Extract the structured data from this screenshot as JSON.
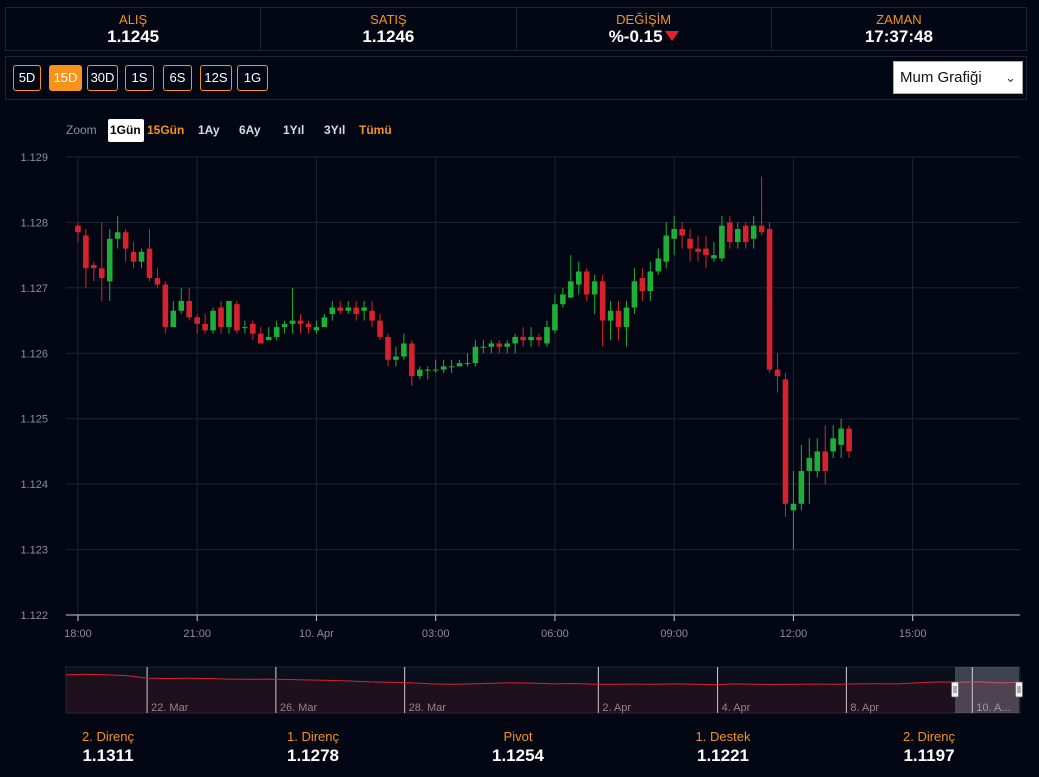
{
  "quotes": [
    {
      "label": "ALIŞ",
      "value": "1.1245"
    },
    {
      "label": "SATIŞ",
      "value": "1.1246"
    },
    {
      "label": "DEĞİŞİM",
      "value": "%-0.15"
    },
    {
      "label": "ZAMAN",
      "value": "17:37:48"
    }
  ],
  "colors": {
    "accent": "#f7931a",
    "up": "#1fae38",
    "down": "#d7222d",
    "navigator_line": "#d7222d",
    "grid": "#1e2433"
  },
  "periods": [
    "5D",
    "15D",
    "30D",
    "1S",
    "6S",
    "12S",
    "1G"
  ],
  "active_period": "15D",
  "chart_type_select": "Mum Grafiği",
  "zoom": {
    "label": "Zoom",
    "buttons": [
      "1Gün",
      "15Gün",
      "1Ay",
      "6Ay",
      "1Yıl",
      "3Yıl",
      "Tümü"
    ],
    "selected": "1Gün"
  },
  "chart_data": {
    "type": "candlestick",
    "y_ticks": [
      "1.129",
      "1.128",
      "1.127",
      "1.126",
      "1.125",
      "1.124",
      "1.123",
      "1.122"
    ],
    "ylim": [
      1.122,
      1.129
    ],
    "x_ticks": [
      "18:00",
      "21:00",
      "10. Apr",
      "03:00",
      "06:00",
      "09:00",
      "12:00",
      "15:00"
    ],
    "x_tick_values": [
      0,
      3,
      6,
      9,
      12,
      15,
      18,
      21
    ],
    "xlim": [
      -0.3,
      23.7
    ],
    "candle_spacing_hours": 0.2,
    "candles": [
      [
        1.12795,
        1.12785,
        1.128,
        1.1277
      ],
      [
        1.1278,
        1.1273,
        1.1279,
        1.127
      ],
      [
        1.12735,
        1.1273,
        1.1274,
        1.1271
      ],
      [
        1.1273,
        1.12715,
        1.128,
        1.1268
      ],
      [
        1.1271,
        1.12775,
        1.1279,
        1.1268
      ],
      [
        1.12775,
        1.12785,
        1.1281,
        1.1276
      ],
      [
        1.12785,
        1.1276,
        1.1279,
        1.1274
      ],
      [
        1.12755,
        1.1274,
        1.1277,
        1.1273
      ],
      [
        1.1274,
        1.12755,
        1.1276,
        1.1273
      ],
      [
        1.1276,
        1.12715,
        1.1279,
        1.1271
      ],
      [
        1.12715,
        1.12705,
        1.1273,
        1.127
      ],
      [
        1.12705,
        1.1264,
        1.1271,
        1.1263
      ],
      [
        1.1264,
        1.12665,
        1.1268,
        1.1264
      ],
      [
        1.12665,
        1.1268,
        1.127,
        1.1266
      ],
      [
        1.1268,
        1.12655,
        1.127,
        1.1265
      ],
      [
        1.12655,
        1.12645,
        1.1266,
        1.1263
      ],
      [
        1.12645,
        1.12635,
        1.1266,
        1.1263
      ],
      [
        1.12635,
        1.12665,
        1.1267,
        1.1263
      ],
      [
        1.1267,
        1.1264,
        1.1268,
        1.1263
      ],
      [
        1.1264,
        1.1268,
        1.1268,
        1.1263
      ],
      [
        1.12675,
        1.12635,
        1.1268,
        1.1263
      ],
      [
        1.1264,
        1.1264,
        1.1265,
        1.1263
      ],
      [
        1.12645,
        1.1263,
        1.1265,
        1.1262
      ],
      [
        1.1263,
        1.12615,
        1.1264,
        1.1262
      ],
      [
        1.1262,
        1.12625,
        1.1264,
        1.1262
      ],
      [
        1.12625,
        1.1264,
        1.1265,
        1.1262
      ],
      [
        1.1264,
        1.12645,
        1.1265,
        1.1263
      ],
      [
        1.12645,
        1.1265,
        1.127,
        1.1263
      ],
      [
        1.1265,
        1.12645,
        1.1266,
        1.1263
      ],
      [
        1.12645,
        1.1264,
        1.1265,
        1.1263
      ],
      [
        1.12635,
        1.1264,
        1.1265,
        1.1263
      ],
      [
        1.1264,
        1.12655,
        1.1266,
        1.1264
      ],
      [
        1.1266,
        1.1267,
        1.1268,
        1.1265
      ],
      [
        1.1267,
        1.12665,
        1.1268,
        1.1266
      ],
      [
        1.12665,
        1.1267,
        1.1268,
        1.1266
      ],
      [
        1.1267,
        1.1266,
        1.1268,
        1.1265
      ],
      [
        1.12665,
        1.1267,
        1.1268,
        1.1265
      ],
      [
        1.12665,
        1.1265,
        1.1268,
        1.1264
      ],
      [
        1.1265,
        1.12625,
        1.1266,
        1.1262
      ],
      [
        1.12625,
        1.1259,
        1.1263,
        1.1258
      ],
      [
        1.1259,
        1.12595,
        1.1261,
        1.1258
      ],
      [
        1.12595,
        1.12615,
        1.1263,
        1.1259
      ],
      [
        1.12615,
        1.12565,
        1.1262,
        1.1255
      ],
      [
        1.12565,
        1.12575,
        1.1258,
        1.1256
      ],
      [
        1.12575,
        1.12575,
        1.1258,
        1.1256
      ],
      [
        1.12575,
        1.12575,
        1.1259,
        1.1257
      ],
      [
        1.12575,
        1.1258,
        1.1259,
        1.1257
      ],
      [
        1.1258,
        1.1258,
        1.1259,
        1.1257
      ],
      [
        1.1258,
        1.12585,
        1.1259,
        1.1258
      ],
      [
        1.12585,
        1.12585,
        1.126,
        1.1258
      ],
      [
        1.12585,
        1.1261,
        1.1262,
        1.1258
      ],
      [
        1.1261,
        1.1261,
        1.1262,
        1.126
      ],
      [
        1.1261,
        1.12615,
        1.1262,
        1.126
      ],
      [
        1.12615,
        1.1261,
        1.1262,
        1.126
      ],
      [
        1.1261,
        1.12615,
        1.1262,
        1.126
      ],
      [
        1.12615,
        1.12625,
        1.1263,
        1.126
      ],
      [
        1.12625,
        1.1262,
        1.1264,
        1.1261
      ],
      [
        1.1262,
        1.12625,
        1.1264,
        1.1261
      ],
      [
        1.12625,
        1.1262,
        1.1263,
        1.1261
      ],
      [
        1.12615,
        1.1264,
        1.1265,
        1.1261
      ],
      [
        1.12635,
        1.12675,
        1.1269,
        1.1263
      ],
      [
        1.12675,
        1.1269,
        1.127,
        1.1267
      ],
      [
        1.12685,
        1.1271,
        1.1275,
        1.1269
      ],
      [
        1.12705,
        1.12725,
        1.1274,
        1.1269
      ],
      [
        1.12725,
        1.1269,
        1.1273,
        1.1268
      ],
      [
        1.1269,
        1.1271,
        1.1272,
        1.1266
      ],
      [
        1.1271,
        1.1265,
        1.1272,
        1.1261
      ],
      [
        1.1265,
        1.12665,
        1.1268,
        1.1262
      ],
      [
        1.12665,
        1.1264,
        1.1268,
        1.1262
      ],
      [
        1.1264,
        1.1267,
        1.1268,
        1.1261
      ],
      [
        1.1267,
        1.1271,
        1.1273,
        1.1266
      ],
      [
        1.12715,
        1.12695,
        1.1273,
        1.1268
      ],
      [
        1.12695,
        1.12725,
        1.1274,
        1.1268
      ],
      [
        1.12725,
        1.12745,
        1.1276,
        1.1272
      ],
      [
        1.1274,
        1.1278,
        1.128,
        1.1273
      ],
      [
        1.12775,
        1.1279,
        1.1281,
        1.1275
      ],
      [
        1.1279,
        1.1278,
        1.128,
        1.1276
      ],
      [
        1.12775,
        1.1276,
        1.1279,
        1.1274
      ],
      [
        1.1276,
        1.12755,
        1.1278,
        1.1274
      ],
      [
        1.1276,
        1.1275,
        1.1278,
        1.1273
      ],
      [
        1.12745,
        1.1275,
        1.1277,
        1.1274
      ],
      [
        1.12745,
        1.12795,
        1.1281,
        1.1274
      ],
      [
        1.128,
        1.1277,
        1.1281,
        1.1276
      ],
      [
        1.1277,
        1.1279,
        1.128,
        1.1276
      ],
      [
        1.12795,
        1.1277,
        1.128,
        1.1276
      ],
      [
        1.12775,
        1.12795,
        1.1281,
        1.1276
      ],
      [
        1.12795,
        1.12785,
        1.1287,
        1.1278
      ],
      [
        1.1279,
        1.12575,
        1.128,
        1.1257
      ],
      [
        1.12575,
        1.12565,
        1.126,
        1.1254
      ],
      [
        1.1256,
        1.1237,
        1.1257,
        1.1235
      ],
      [
        1.1236,
        1.1237,
        1.1242,
        1.123
      ],
      [
        1.1237,
        1.1242,
        1.1246,
        1.1236
      ],
      [
        1.1242,
        1.1244,
        1.1247,
        1.1237
      ],
      [
        1.1242,
        1.1245,
        1.1247,
        1.1241
      ],
      [
        1.1245,
        1.1242,
        1.1249,
        1.124
      ],
      [
        1.1245,
        1.1247,
        1.1249,
        1.1244
      ],
      [
        1.1246,
        1.12485,
        1.125,
        1.1244
      ],
      [
        1.12485,
        1.1245,
        1.1249,
        1.1244
      ]
    ],
    "navigator": {
      "x_labels": [
        "22. Mar",
        "26. Mar",
        "28. Mar",
        "2. Apr",
        "4. Apr",
        "8. Apr",
        "10. A..."
      ],
      "ylim": [
        1.11,
        1.134
      ],
      "x_values": [
        0,
        20,
        40,
        60,
        80,
        100,
        120,
        140,
        160,
        180,
        200,
        220,
        240,
        260,
        280,
        300,
        320,
        340,
        360,
        380,
        400,
        420,
        440,
        460,
        480,
        500,
        520,
        540,
        560,
        580,
        600,
        620,
        640,
        660,
        680,
        700,
        720,
        740,
        760,
        780,
        800,
        820,
        840,
        860,
        880,
        900,
        920,
        940
      ],
      "values": [
        1.13,
        1.1302,
        1.13,
        1.1295,
        1.1282,
        1.128,
        1.1281,
        1.128,
        1.1277,
        1.1276,
        1.1277,
        1.1275,
        1.1272,
        1.127,
        1.1267,
        1.1262,
        1.126,
        1.1258,
        1.1252,
        1.125,
        1.1252,
        1.1255,
        1.1258,
        1.1256,
        1.1252,
        1.1254,
        1.125,
        1.125,
        1.1251,
        1.125,
        1.1252,
        1.125,
        1.1248,
        1.1252,
        1.125,
        1.1249,
        1.125,
        1.1251,
        1.125,
        1.1252,
        1.1253,
        1.1252,
        1.1258,
        1.1262,
        1.126,
        1.1262,
        1.1257,
        1.126
      ]
    }
  },
  "pivots": [
    {
      "label": "2. Direnç",
      "value": "1.1311"
    },
    {
      "label": "1. Direnç",
      "value": "1.1278"
    },
    {
      "label": "Pivot",
      "value": "1.1254"
    },
    {
      "label": "1. Destek",
      "value": "1.1221"
    },
    {
      "label": "2. Direnç",
      "value": "1.1197"
    }
  ]
}
